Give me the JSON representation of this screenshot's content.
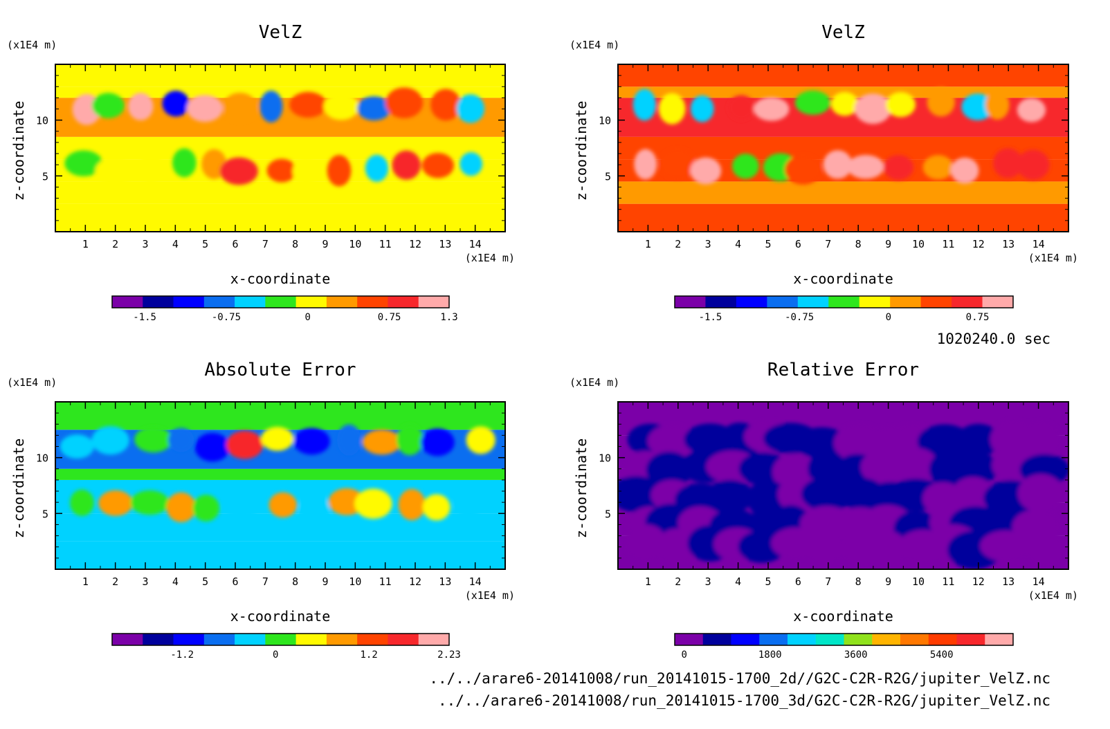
{
  "figure": {
    "time_label": "1020240.0 sec",
    "file_paths": [
      "../../arare6-20141008/run_20141015-1700_2d//G2C-C2R-R2G/jupiter_VelZ.nc",
      "../../arare6-20141008/run_20141015-1700_3d/G2C-C2R-R2G/jupiter_VelZ.nc"
    ]
  },
  "colors": {
    "palette": [
      "#7b00a8",
      "#00009c",
      "#0000ff",
      "#0a6ef0",
      "#00d2ff",
      "#2ee61e",
      "#fffa00",
      "#ff9a00",
      "#ff4400",
      "#f7282c",
      "#ffaaaa"
    ],
    "relative_palette": [
      "#7b00a8",
      "#00009c",
      "#0000ff",
      "#0a6ef0",
      "#00d2ff",
      "#00e6c8",
      "#90e21c",
      "#ffb400",
      "#ff7800",
      "#ff3c00",
      "#f7282c",
      "#ffaaaa"
    ]
  },
  "chart_data": [
    {
      "type": "heatmap",
      "title": "VelZ",
      "xlabel": "x-coordinate",
      "ylabel": "z-coordinate",
      "x_unit": "(x1E4 m)",
      "y_unit": "(x1E4 m)",
      "xlim": [
        0,
        15
      ],
      "ylim": [
        0,
        15
      ],
      "xticks": [
        "1",
        "2",
        "3",
        "4",
        "5",
        "6",
        "7",
        "8",
        "9",
        "10",
        "11",
        "12",
        "13",
        "14"
      ],
      "yticks": [
        "5",
        "10"
      ],
      "colorbar": {
        "min": -1.8,
        "max": 1.3,
        "tick_labels": [
          "-1.5",
          "-0.75",
          "0",
          "0.75",
          "1.3"
        ],
        "tick_values": [
          -1.5,
          -0.75,
          0,
          0.75,
          1.3
        ]
      },
      "cells": [
        {
          "z": [
            0,
            2.5
          ],
          "v": 0.1
        },
        {
          "z": [
            2.5,
            4.5
          ],
          "v": 0.05
        },
        {
          "z": [
            4.5,
            6.5
          ],
          "v": 0.0
        },
        {
          "z": [
            6.5,
            8.5
          ],
          "v": 0.1
        },
        {
          "z": [
            8.5,
            12.0
          ],
          "v": 0.2
        },
        {
          "z": [
            12.0,
            13.0
          ],
          "v": 0.1
        },
        {
          "z": [
            13.0,
            15.0
          ],
          "v": 0.0
        }
      ]
    },
    {
      "type": "heatmap",
      "title": "VelZ",
      "xlabel": "x-coordinate",
      "ylabel": "z-coordinate",
      "x_unit": "(x1E4 m)",
      "y_unit": "(x1E4 m)",
      "xlim": [
        0,
        15
      ],
      "ylim": [
        0,
        15
      ],
      "xticks": [
        "1",
        "2",
        "3",
        "4",
        "5",
        "6",
        "7",
        "8",
        "9",
        "10",
        "11",
        "12",
        "13",
        "14"
      ],
      "yticks": [
        "5",
        "10"
      ],
      "colorbar": {
        "min": -1.8,
        "max": 1.05,
        "tick_labels": [
          "-1.5",
          "-0.75",
          "0",
          "0.75"
        ],
        "tick_values": [
          -1.5,
          -0.75,
          0,
          0.75
        ]
      },
      "cells": [
        {
          "z": [
            0,
            2.5
          ],
          "v": 0.3
        },
        {
          "z": [
            2.5,
            4.5
          ],
          "v": 0.25
        },
        {
          "z": [
            4.5,
            6.5
          ],
          "v": 0.4
        },
        {
          "z": [
            6.5,
            8.5
          ],
          "v": 0.3
        },
        {
          "z": [
            8.5,
            12.0
          ],
          "v": 0.6
        },
        {
          "z": [
            12.0,
            13.0
          ],
          "v": 0.1
        },
        {
          "z": [
            13.0,
            15.0
          ],
          "v": 0.3
        }
      ]
    },
    {
      "type": "heatmap",
      "title": "Absolute Error",
      "xlabel": "x-coordinate",
      "ylabel": "z-coordinate",
      "x_unit": "(x1E4 m)",
      "y_unit": "(x1E4 m)",
      "xlim": [
        0,
        15
      ],
      "ylim": [
        0,
        15
      ],
      "xticks": [
        "1",
        "2",
        "3",
        "4",
        "5",
        "6",
        "7",
        "8",
        "9",
        "10",
        "11",
        "12",
        "13",
        "14"
      ],
      "yticks": [
        "5",
        "10"
      ],
      "colorbar": {
        "min": -2.1,
        "max": 2.23,
        "tick_labels": [
          "-1.2",
          "0",
          "1.2",
          "2.23"
        ],
        "tick_values": [
          -1.2,
          0,
          1.2,
          2.23
        ]
      },
      "cells": [
        {
          "z": [
            0,
            2.5
          ],
          "v": -0.35
        },
        {
          "z": [
            2.5,
            5.0
          ],
          "v": -0.2
        },
        {
          "z": [
            5.0,
            8.0
          ],
          "v": -0.35
        },
        {
          "z": [
            8.0,
            9.0
          ],
          "v": 0.1
        },
        {
          "z": [
            9.0,
            12.5
          ],
          "v": -0.7
        },
        {
          "z": [
            12.5,
            15.0
          ],
          "v": -0.05
        }
      ]
    },
    {
      "type": "heatmap",
      "title": "Relative Error",
      "xlabel": "x-coordinate",
      "ylabel": "z-coordinate",
      "x_unit": "(x1E4 m)",
      "y_unit": "(x1E4 m)",
      "xlim": [
        0,
        15
      ],
      "ylim": [
        0,
        15
      ],
      "xticks": [
        "1",
        "2",
        "3",
        "4",
        "5",
        "6",
        "7",
        "8",
        "9",
        "10",
        "11",
        "12",
        "13",
        "14"
      ],
      "yticks": [
        "5",
        "10"
      ],
      "colorbar": {
        "min": -200,
        "max": 6900,
        "tick_labels": [
          "0",
          "1800",
          "3600",
          "5400"
        ],
        "tick_values": [
          0,
          1800,
          3600,
          5400
        ]
      },
      "cells": [
        {
          "z": [
            0,
            3.0
          ],
          "v": -100
        },
        {
          "z": [
            3.0,
            6.0
          ],
          "v": 200
        },
        {
          "z": [
            6.0,
            9.0
          ],
          "v": -100
        },
        {
          "z": [
            9.0,
            12.0
          ],
          "v": 250
        },
        {
          "z": [
            12.0,
            15.0
          ],
          "v": -100
        }
      ]
    }
  ]
}
